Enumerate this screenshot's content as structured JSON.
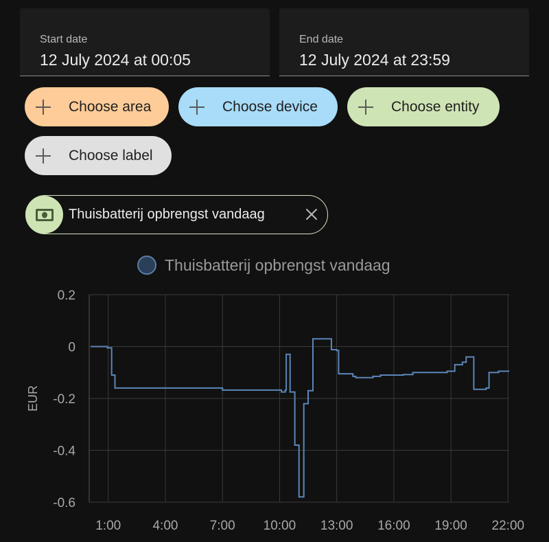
{
  "date_range": {
    "start": {
      "label": "Start date",
      "value": "12 July 2024 at 00:05"
    },
    "end": {
      "label": "End date",
      "value": "12 July 2024 at 23:59"
    }
  },
  "targets": [
    {
      "label": "Choose area",
      "color": "#fdcc99"
    },
    {
      "label": "Choose device",
      "color": "#a8dcf8"
    },
    {
      "label": "Choose entity",
      "color": "#cfe4b4"
    },
    {
      "label": "Choose label",
      "color": "#e0e0e0"
    }
  ],
  "selected_entity": {
    "name": "Thuisbatterij opbrengst vandaag",
    "icon": "cash-icon",
    "accent": "#cfe4b4"
  },
  "chart_data": {
    "type": "line",
    "line_style": "step",
    "legend": "Thuisbatterij opbrengst vandaag",
    "series_color": "#5b86b8",
    "ylabel": "EUR",
    "ylim": [
      -0.6,
      0.2
    ],
    "yticks": [
      "0.2",
      "0",
      "-0.2",
      "-0.4",
      "-0.6"
    ],
    "ytick_values": [
      0.2,
      0,
      -0.2,
      -0.4,
      -0.6
    ],
    "xlim": [
      0.0,
      22.06
    ],
    "xticks": [
      "1:00",
      "4:00",
      "7:00",
      "10:00",
      "13:00",
      "16:00",
      "19:00",
      "22:00"
    ],
    "xtick_values": [
      1,
      4,
      7,
      10,
      13,
      16,
      19,
      22
    ],
    "grid": true,
    "points": [
      [
        0.08,
        0.0
      ],
      [
        0.95,
        -0.005
      ],
      [
        1.18,
        -0.11
      ],
      [
        1.35,
        -0.16
      ],
      [
        3.0,
        -0.16
      ],
      [
        7.0,
        -0.168
      ],
      [
        10.1,
        -0.175
      ],
      [
        10.3,
        -0.168
      ],
      [
        10.35,
        -0.03
      ],
      [
        10.5,
        -0.03
      ],
      [
        10.55,
        -0.175
      ],
      [
        10.78,
        -0.175
      ],
      [
        10.8,
        -0.38
      ],
      [
        11.0,
        -0.38
      ],
      [
        11.02,
        -0.58
      ],
      [
        11.25,
        -0.58
      ],
      [
        11.27,
        -0.22
      ],
      [
        11.48,
        -0.22
      ],
      [
        11.5,
        -0.17
      ],
      [
        11.72,
        -0.17
      ],
      [
        11.75,
        0.03
      ],
      [
        12.7,
        0.03
      ],
      [
        12.72,
        -0.012
      ],
      [
        13.0,
        -0.015
      ],
      [
        13.1,
        -0.105
      ],
      [
        13.8,
        -0.105
      ],
      [
        13.85,
        -0.115
      ],
      [
        14.0,
        -0.12
      ],
      [
        14.9,
        -0.115
      ],
      [
        15.3,
        -0.11
      ],
      [
        16.5,
        -0.108
      ],
      [
        17.0,
        -0.1
      ],
      [
        18.4,
        -0.1
      ],
      [
        18.8,
        -0.095
      ],
      [
        19.2,
        -0.07
      ],
      [
        19.6,
        -0.06
      ],
      [
        19.8,
        -0.04
      ],
      [
        20.0,
        -0.04
      ],
      [
        20.2,
        -0.165
      ],
      [
        20.85,
        -0.16
      ],
      [
        21.0,
        -0.1
      ],
      [
        21.5,
        -0.095
      ],
      [
        22.06,
        -0.095
      ]
    ]
  }
}
